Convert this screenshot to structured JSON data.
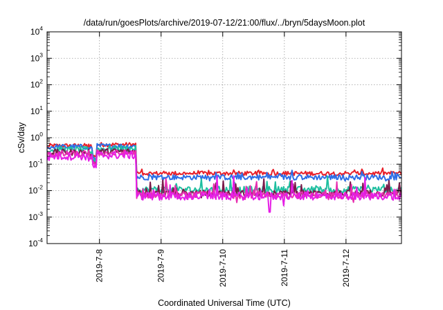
{
  "chart_data": {
    "type": "line",
    "title": "/data/run/goesPlots/archive/2019-07-12/21:00/flux/../bryn/5daysMoon.plot",
    "xlabel": "Coordinated Universal Time (UTC)",
    "ylabel": "cSv/day",
    "yscale": "log",
    "ylim": [
      0.0001,
      10000
    ],
    "xlim_days": [
      7.15,
      12.9
    ],
    "grid": true,
    "legend": "none",
    "yticks": [
      {
        "base": "10",
        "exp": "-4"
      },
      {
        "base": "10",
        "exp": "-3"
      },
      {
        "base": "10",
        "exp": "-2"
      },
      {
        "base": "10",
        "exp": "-1"
      },
      {
        "base": "10",
        "exp": "0"
      },
      {
        "base": "10",
        "exp": "1"
      },
      {
        "base": "10",
        "exp": "2"
      },
      {
        "base": "10",
        "exp": "3"
      },
      {
        "base": "10",
        "exp": "4"
      }
    ],
    "xticks": [
      {
        "label": "2019-7-8",
        "day": 8
      },
      {
        "label": "2019-7-9",
        "day": 9
      },
      {
        "label": "2019-7-10",
        "day": 10
      },
      {
        "label": "2019-7-11",
        "day": 11
      },
      {
        "label": "2019-7-12",
        "day": 12
      }
    ],
    "series": [
      {
        "color": "#e8202a",
        "levels": {
          "a": 0.5,
          "b": 0.55,
          "c": 0.045
        },
        "noise": 0.08,
        "bump": 0.2
      },
      {
        "color": "#2d6ee6",
        "levels": {
          "a": 0.45,
          "b": 0.48,
          "c": 0.032
        },
        "noise": 0.1,
        "bump": 0.3
      },
      {
        "color": "#1fbfa0",
        "levels": {
          "a": 0.35,
          "b": 0.38,
          "c": 0.011
        },
        "noise": 0.12,
        "bump": 0.6
      },
      {
        "color": "#7a1a4a",
        "levels": {
          "a": 0.28,
          "b": 0.3,
          "c": 0.0078
        },
        "noise": 0.12,
        "bump": 0.7
      },
      {
        "color": "#e82fb0",
        "levels": {
          "a": 0.24,
          "b": 0.26,
          "c": 0.0068
        },
        "noise": 0.13,
        "bump": 0.8
      },
      {
        "color": "#e61ee6",
        "levels": {
          "a": 0.2,
          "b": 0.22,
          "c": 0.0062
        },
        "noise": 0.15,
        "bump": 0.9
      }
    ]
  }
}
